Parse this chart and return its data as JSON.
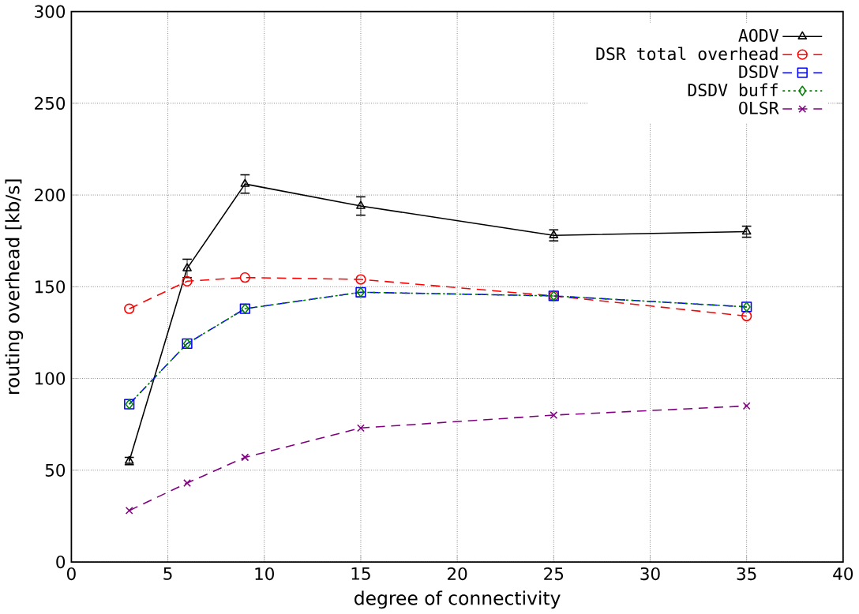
{
  "chart_data": {
    "type": "line",
    "xlabel": "degree of connectivity",
    "ylabel": "routing overhead [kb/s]",
    "xlim": [
      0,
      40
    ],
    "xticks": [
      0,
      5,
      10,
      15,
      20,
      25,
      30,
      35,
      40
    ],
    "ylim": [
      0,
      300
    ],
    "yticks": [
      0,
      50,
      100,
      150,
      200,
      250,
      300
    ],
    "grid": true,
    "legend": "top right",
    "series": [
      {
        "name": "AODV",
        "color": "#000000",
        "marker": "triangle",
        "line_style": "solid",
        "x": [
          3,
          6,
          9,
          15,
          25,
          35
        ],
        "values": [
          55,
          160,
          206,
          194,
          178,
          180
        ],
        "errors": [
          2,
          5,
          5,
          5,
          3,
          3
        ]
      },
      {
        "name": "DSR total overhead",
        "color": "#ff0000",
        "marker": "circle",
        "line_style": "dashed",
        "x": [
          3,
          6,
          9,
          15,
          25,
          35
        ],
        "values": [
          138,
          153,
          155,
          154,
          145,
          134
        ]
      },
      {
        "name": "DSDV",
        "color": "#0000ff",
        "marker": "square",
        "line_style": "dashed",
        "x": [
          3,
          6,
          9,
          15,
          25,
          35
        ],
        "values": [
          86,
          119,
          138,
          147,
          145,
          139
        ]
      },
      {
        "name": "DSDV buff",
        "color": "#008000",
        "marker": "diamond",
        "line_style": "dotted",
        "x": [
          3,
          6,
          9,
          15,
          25,
          35
        ],
        "values": [
          86,
          119,
          138,
          147,
          145,
          139
        ]
      },
      {
        "name": "OLSR",
        "color": "#800080",
        "marker": "cross",
        "line_style": "dashed",
        "x": [
          3,
          6,
          9,
          15,
          25,
          35
        ],
        "values": [
          28,
          43,
          57,
          73,
          80,
          85
        ]
      }
    ]
  }
}
